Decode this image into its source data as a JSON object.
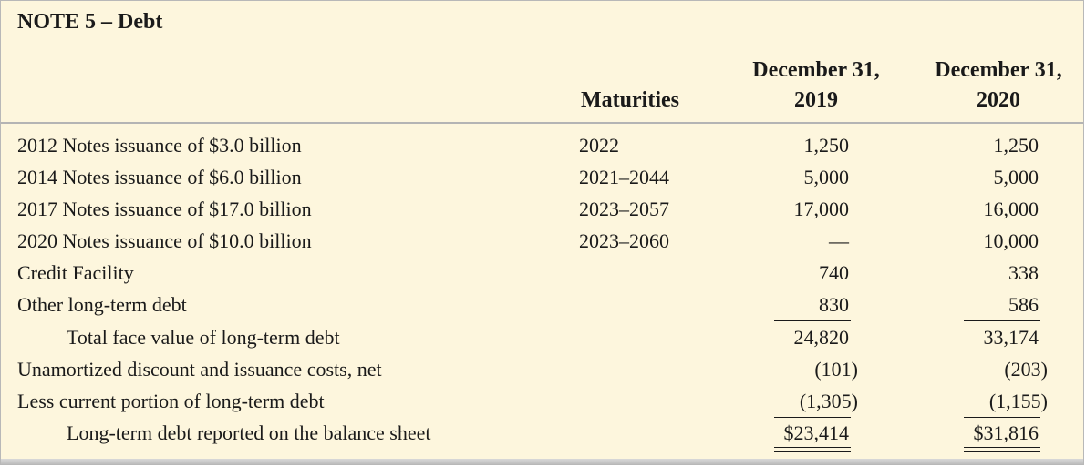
{
  "title": "NOTE 5 – Debt",
  "headers": {
    "maturities": "Maturities",
    "col2019_line1": "December 31,",
    "col2019_line2": "2019",
    "col2020_line1": "December 31,",
    "col2020_line2": "2020"
  },
  "rows": [
    {
      "label": "2012 Notes issuance of $3.0 billion",
      "maturity": "2022",
      "v2019": "1,250",
      "v2020": "1,250"
    },
    {
      "label": "2014 Notes issuance of $6.0 billion",
      "maturity": "2021–2044",
      "v2019": "5,000",
      "v2020": "5,000"
    },
    {
      "label": "2017 Notes issuance of $17.0 billion",
      "maturity": "2023–2057",
      "v2019": "17,000",
      "v2020": "16,000"
    },
    {
      "label": "2020 Notes issuance of $10.0 billion",
      "maturity": "2023–2060",
      "v2019": "—",
      "v2020": "10,000"
    },
    {
      "label": "Credit Facility",
      "maturity": "",
      "v2019": "740",
      "v2020": "338"
    },
    {
      "label": "Other long-term debt",
      "maturity": "",
      "v2019": "830",
      "v2020": "586"
    },
    {
      "label": "Total face value of long-term debt",
      "maturity": "",
      "v2019": "24,820",
      "v2020": "33,174"
    },
    {
      "label": "Unamortized discount and issuance costs, net",
      "maturity": "",
      "v2019": "(101)",
      "v2020": "(203)"
    },
    {
      "label": "Less current portion of long-term debt",
      "maturity": "",
      "v2019": "(1,305)",
      "v2020": "(1,155)"
    },
    {
      "label": "Long-term debt reported on the balance sheet",
      "maturity": "",
      "v2019": "$23,414",
      "v2020": "$31,816"
    }
  ]
}
